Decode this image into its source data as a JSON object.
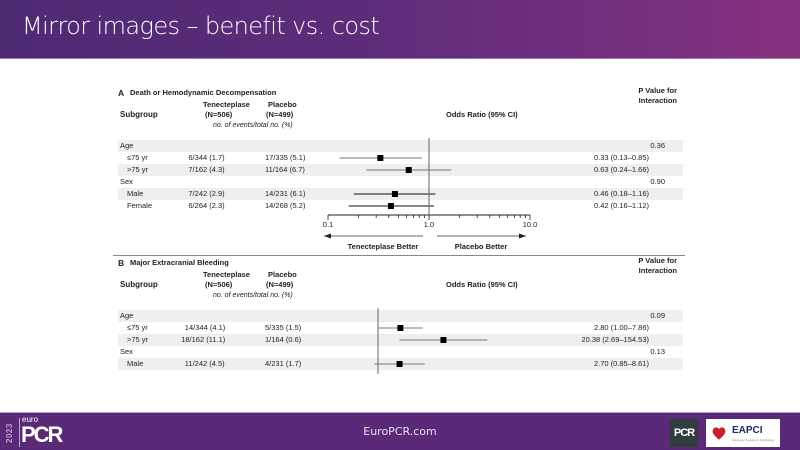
{
  "header": {
    "title": "Mirror images – benefit vs. cost"
  },
  "footer": {
    "url": "EuroPCR.com",
    "logo_year": "2023",
    "logo_euro": "euro",
    "logo_pcr": "PCR",
    "pcr_badge": "PCR",
    "eapci_label": "EAPCI",
    "eapci_sub": "European Society of Cardiology"
  },
  "chart_data": [
    {
      "type": "forest",
      "panel_letter": "A",
      "title": "Death or Hemodynamic Decompensation",
      "columns": {
        "subgroup": "Subgroup",
        "group1": "Tenecteplase",
        "group1_n": "(N=506)",
        "group2": "Placebo",
        "group2_n": "(N=499)",
        "subheader": "no. of events/total no. (%)",
        "effect": "Odds Ratio (95% CI)",
        "p_value": [
          "P Value for",
          "Interaction"
        ]
      },
      "rows": [
        {
          "label": "Age",
          "header": true,
          "p": "0.36",
          "shaded": true
        },
        {
          "label": "≤75 yr",
          "g1": "6/344 (1.7)",
          "g2": "17/335 (5.1)",
          "or": 0.33,
          "lo": 0.13,
          "hi": 0.85,
          "text": "0.33 (0.13–0.85)",
          "shaded": false
        },
        {
          "label": ">75 yr",
          "g1": "7/162 (4.3)",
          "g2": "11/164 (6.7)",
          "or": 0.63,
          "lo": 0.24,
          "hi": 1.66,
          "text": "0.63 (0.24–1.66)",
          "shaded": true
        },
        {
          "label": "Sex",
          "header": true,
          "p": "0.90",
          "shaded": false
        },
        {
          "label": "Male",
          "g1": "7/242 (2.9)",
          "g2": "14/231 (6.1)",
          "or": 0.46,
          "lo": 0.18,
          "hi": 1.16,
          "text": "0.46 (0.18–1.16)",
          "shaded": true
        },
        {
          "label": "Female",
          "g1": "6/264 (2.3)",
          "g2": "14/268 (5.2)",
          "or": 0.42,
          "lo": 0.16,
          "hi": 1.12,
          "text": "0.42 (0.16–1.12)",
          "shaded": false
        }
      ],
      "xscale": "log",
      "xlim": [
        0.1,
        10.0
      ],
      "xticks": [
        "0.1",
        "1.0",
        "10.0"
      ],
      "reference": 1.0,
      "direction_labels": {
        "left": "Tenecteplase Better",
        "right": "Placebo Better"
      }
    },
    {
      "type": "forest",
      "panel_letter": "B",
      "title": "Major Extracranial Bleeding",
      "columns": {
        "subgroup": "Subgroup",
        "group1": "Tenecteplase",
        "group1_n": "(N=506)",
        "group2": "Placebo",
        "group2_n": "(N=499)",
        "subheader": "no. of events/total no. (%)",
        "effect": "Odds Ratio (95% CI)",
        "p_value": [
          "P Value for",
          "Interaction"
        ]
      },
      "rows": [
        {
          "label": "Age",
          "header": true,
          "p": "0.09",
          "shaded": true
        },
        {
          "label": "≤75 yr",
          "g1": "14/344 (4.1)",
          "g2": "5/335 (1.5)",
          "or": 2.8,
          "lo": 1.0,
          "hi": 7.86,
          "text": "2.80 (1.00–7.86)",
          "shaded": false
        },
        {
          "label": ">75 yr",
          "g1": "18/162 (11.1)",
          "g2": "1/164 (0.6)",
          "or": 20.38,
          "lo": 2.69,
          "hi": 154.53,
          "text": "20.38 (2.69–154.53)",
          "shaded": true
        },
        {
          "label": "Sex",
          "header": true,
          "p": "0.13",
          "shaded": false
        },
        {
          "label": "Male",
          "g1": "11/242 (4.5)",
          "g2": "4/231 (1.7)",
          "or": 2.7,
          "lo": 0.85,
          "hi": 8.61,
          "text": "2.70 (0.85–8.61)",
          "shaded": true
        }
      ],
      "xscale": "log",
      "reference": 1.0
    }
  ]
}
